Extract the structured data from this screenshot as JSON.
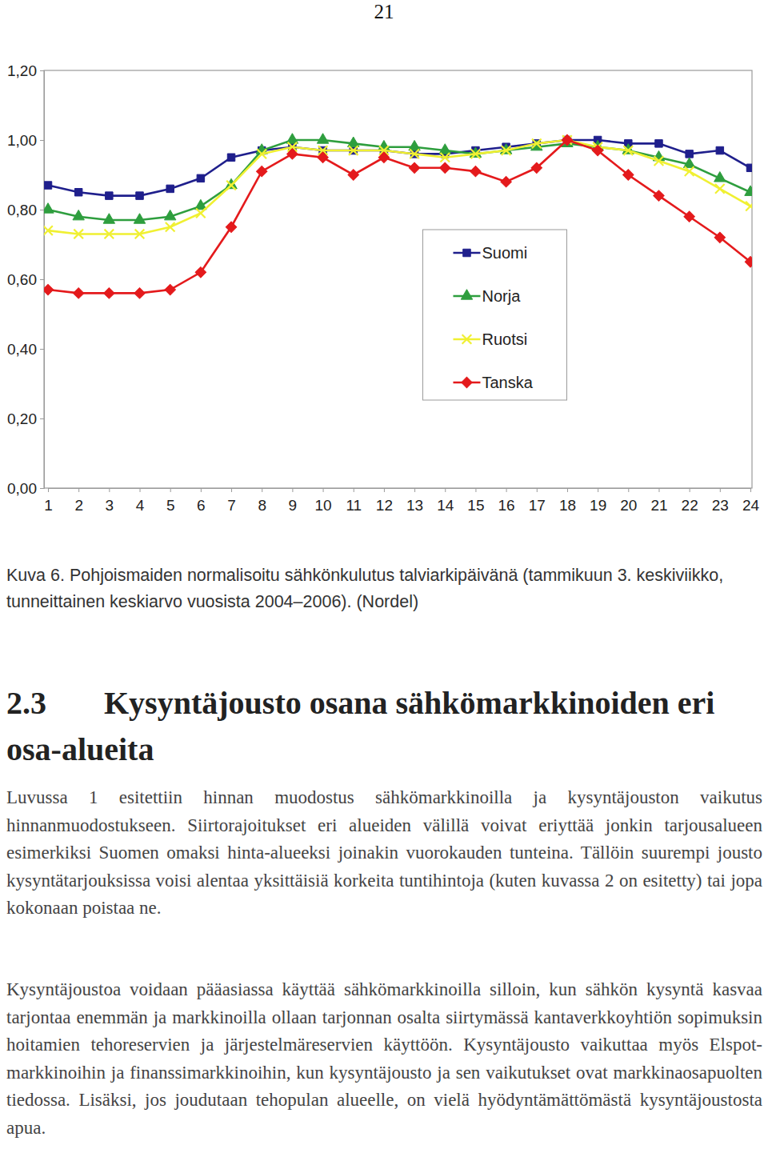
{
  "page_number": "21",
  "chart_data": {
    "type": "line",
    "categories": [
      "1",
      "2",
      "3",
      "4",
      "5",
      "6",
      "7",
      "8",
      "9",
      "10",
      "11",
      "12",
      "13",
      "14",
      "15",
      "16",
      "17",
      "18",
      "19",
      "20",
      "21",
      "22",
      "23",
      "24"
    ],
    "series": [
      {
        "name": "Suomi",
        "color": "#1f1f8c",
        "marker": "square",
        "values": [
          0.87,
          0.85,
          0.84,
          0.84,
          0.86,
          0.89,
          0.95,
          0.97,
          0.98,
          0.97,
          0.97,
          0.97,
          0.96,
          0.96,
          0.97,
          0.98,
          0.99,
          1.0,
          1.0,
          0.99,
          0.99,
          0.96,
          0.97,
          0.92
        ]
      },
      {
        "name": "Norja",
        "color": "#2e9e3e",
        "marker": "triangle",
        "values": [
          0.8,
          0.78,
          0.77,
          0.77,
          0.78,
          0.81,
          0.87,
          0.97,
          1.0,
          1.0,
          0.99,
          0.98,
          0.98,
          0.97,
          0.96,
          0.97,
          0.98,
          0.99,
          0.98,
          0.97,
          0.95,
          0.93,
          0.89,
          0.85
        ]
      },
      {
        "name": "Ruotsi",
        "color": "#f0f032",
        "marker": "x",
        "values": [
          0.74,
          0.73,
          0.73,
          0.73,
          0.75,
          0.79,
          0.87,
          0.96,
          0.98,
          0.97,
          0.97,
          0.97,
          0.96,
          0.95,
          0.96,
          0.97,
          0.99,
          1.0,
          0.98,
          0.97,
          0.94,
          0.91,
          0.86,
          0.81
        ]
      },
      {
        "name": "Tanska",
        "color": "#e41a1c",
        "marker": "diamond",
        "values": [
          0.57,
          0.56,
          0.56,
          0.56,
          0.57,
          0.62,
          0.75,
          0.91,
          0.96,
          0.95,
          0.9,
          0.95,
          0.92,
          0.92,
          0.91,
          0.88,
          0.92,
          1.0,
          0.97,
          0.9,
          0.84,
          0.78,
          0.72,
          0.65
        ]
      }
    ],
    "ylim": [
      0,
      1.2
    ],
    "yticks": [
      {
        "value": 0,
        "label": "0,00"
      },
      {
        "value": 0.2,
        "label": "0,20"
      },
      {
        "value": 0.4,
        "label": "0,40"
      },
      {
        "value": 0.6,
        "label": "0,60"
      },
      {
        "value": 0.8,
        "label": "0,80"
      },
      {
        "value": 1.0,
        "label": "1,00"
      },
      {
        "value": 1.2,
        "label": "1,20"
      }
    ],
    "grid": false,
    "legend": "lower center"
  },
  "caption": "Kuva 6.  Pohjoismaiden normalisoitu sähkönkulutus talviarkipäivänä (tammikuun 3. keskiviikko, tunneittainen keskiarvo vuosista 2004–2006). (Nordel)",
  "heading": {
    "number": "2.3",
    "title": "Kysyntäjousto osana sähkömarkkinoiden eri osa-alueita"
  },
  "paragraphs": [
    "Luvussa 1 esitettiin hinnan muodostus sähkömarkkinoilla ja kysyntäjouston vaikutus hinnanmuodostukseen. Siirtorajoitukset eri alueiden välillä voivat eriyttää jonkin tarjousalueen esimerkiksi Suomen omaksi hinta-alueeksi joinakin vuorokauden tunteina. Tällöin suurempi jousto kysyntätarjouksissa voisi alentaa yksittäisiä korkeita tuntihintoja (kuten kuvassa 2 on esitetty) tai jopa kokonaan poistaa ne.",
    "Kysyntäjoustoa voidaan pääasiassa käyttää sähkömarkkinoilla silloin, kun sähkön kysyntä kasvaa tarjontaa enemmän ja markkinoilla ollaan tarjonnan osalta siirtymässä kantaverkkoyhtiön sopimuksin hoitamien tehoreservien ja järjestelmäreservien käyttöön. Kysyntäjousto vaikuttaa myös Elspot-markkinoihin ja finanssimarkkinoihin, kun kysyntäjousto ja sen vaikutukset ovat markkinaosapuolten tiedossa. Lisäksi, jos joudutaan tehopulan alueelle, on vielä hyödyntämättömästä kysyntäjoustosta apua."
  ]
}
